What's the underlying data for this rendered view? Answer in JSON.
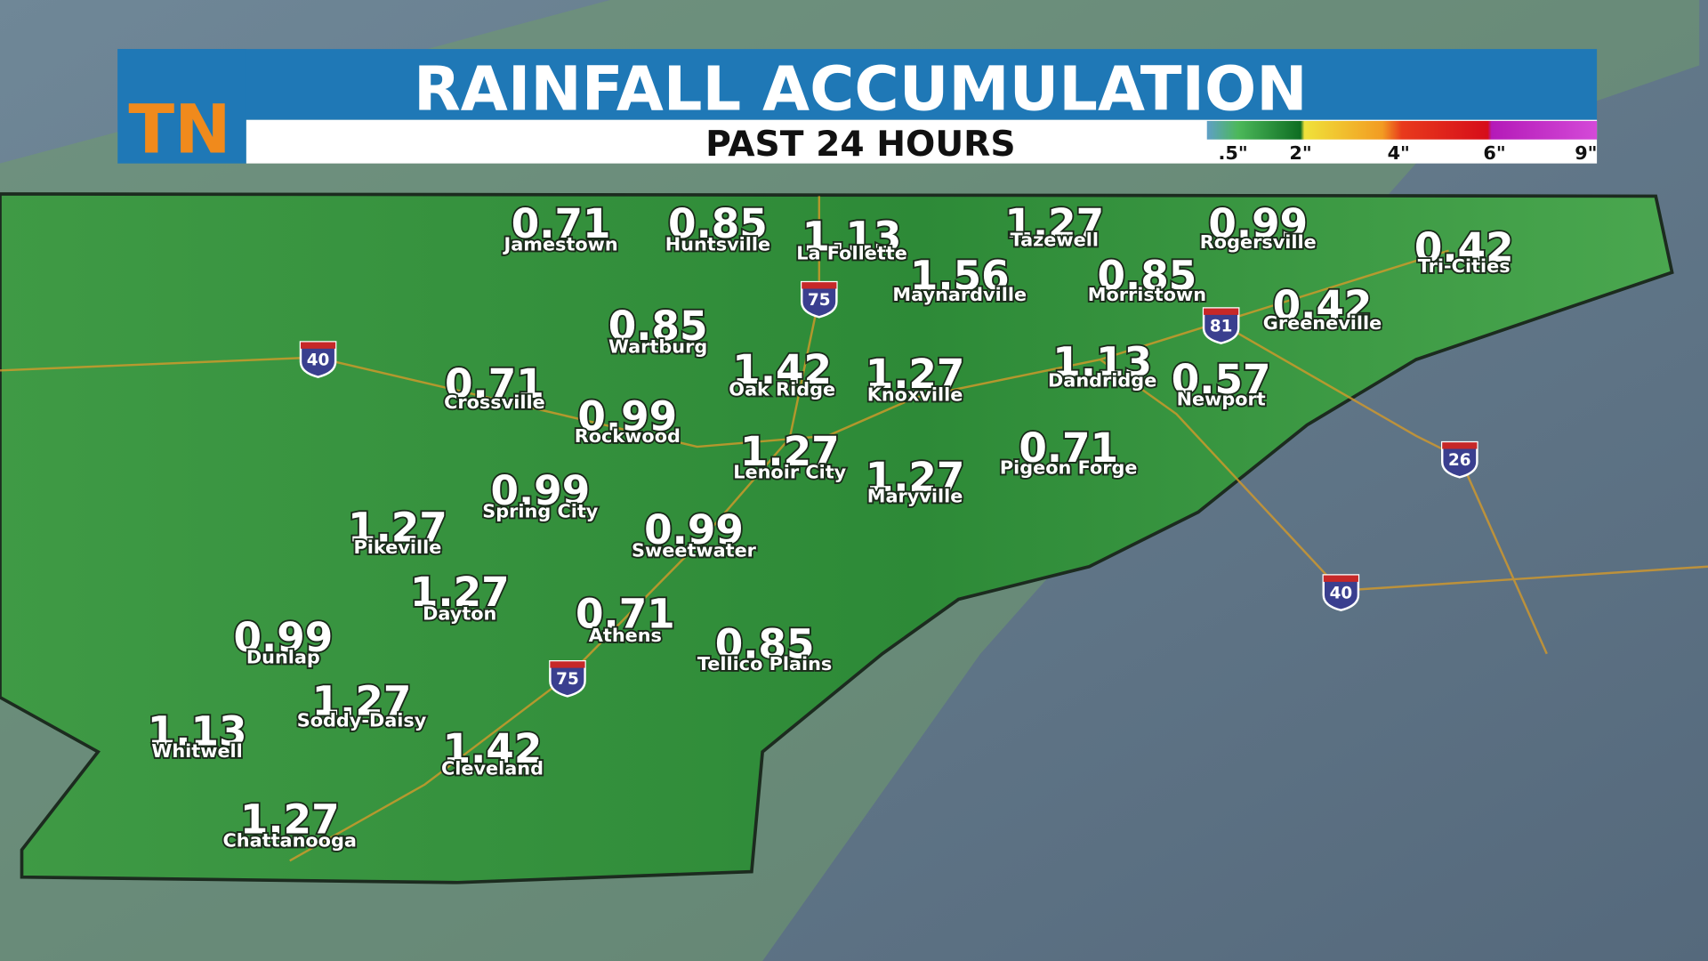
{
  "header": {
    "logo": "TN",
    "title": "RAINFALL ACCUMULATION",
    "subtitle": "PAST 24 HOURS"
  },
  "legend": {
    "labels": [
      ".5\"",
      "2\"",
      "4\"",
      "6\"",
      "9\""
    ]
  },
  "cities": [
    {
      "name": "Jamestown",
      "value": "0.71"
    },
    {
      "name": "Huntsville",
      "value": "0.85"
    },
    {
      "name": "La Follette",
      "value": "1.13"
    },
    {
      "name": "Tazewell",
      "value": "1.27"
    },
    {
      "name": "Rogersville",
      "value": "0.99"
    },
    {
      "name": "Tri-Cities",
      "value": "0.42"
    },
    {
      "name": "Maynardville",
      "value": "1.56"
    },
    {
      "name": "Morristown",
      "value": "0.85"
    },
    {
      "name": "Greeneville",
      "value": "0.42"
    },
    {
      "name": "Wartburg",
      "value": "0.85"
    },
    {
      "name": "Oak Ridge",
      "value": "1.42"
    },
    {
      "name": "Knoxville",
      "value": "1.27"
    },
    {
      "name": "Dandridge",
      "value": "1.13"
    },
    {
      "name": "Newport",
      "value": "0.57"
    },
    {
      "name": "Crossville",
      "value": "0.71"
    },
    {
      "name": "Rockwood",
      "value": "0.99"
    },
    {
      "name": "Lenoir City",
      "value": "1.27"
    },
    {
      "name": "Maryville",
      "value": "1.27"
    },
    {
      "name": "Pigeon Forge",
      "value": "0.71"
    },
    {
      "name": "Spring City",
      "value": "0.99"
    },
    {
      "name": "Pikeville",
      "value": "1.27"
    },
    {
      "name": "Sweetwater",
      "value": "0.99"
    },
    {
      "name": "Dayton",
      "value": "1.27"
    },
    {
      "name": "Athens",
      "value": "0.71"
    },
    {
      "name": "Tellico Plains",
      "value": "0.85"
    },
    {
      "name": "Dunlap",
      "value": "0.99"
    },
    {
      "name": "Soddy-Daisy",
      "value": "1.27"
    },
    {
      "name": "Whitwell",
      "value": "1.13"
    },
    {
      "name": "Cleveland",
      "value": "1.42"
    },
    {
      "name": "Chattanooga",
      "value": "1.27"
    }
  ],
  "interstates": [
    "40",
    "75",
    "81",
    "26",
    "40",
    "75"
  ]
}
